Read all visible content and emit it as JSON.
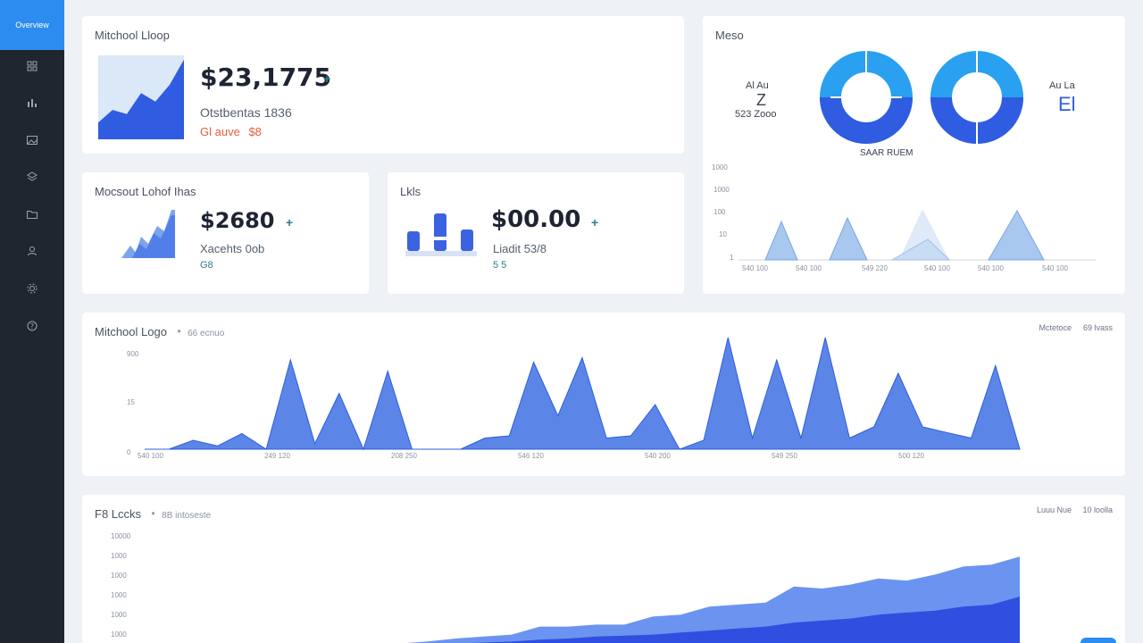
{
  "sidebar": {
    "active_label": "Overview",
    "items": [
      {
        "icon": "grid-icon"
      },
      {
        "icon": "chart-icon"
      },
      {
        "icon": "image-icon"
      },
      {
        "icon": "layers-icon"
      },
      {
        "icon": "folder-icon"
      },
      {
        "icon": "users-icon"
      },
      {
        "icon": "settings-icon"
      },
      {
        "icon": "help-icon"
      }
    ]
  },
  "card_revenue": {
    "title": "Mitchool Lloop",
    "value": "$23,1775",
    "trend": "+",
    "sub1": "Otstbentas 1836",
    "sub2_a": "Gl auve",
    "sub2_b": "$8"
  },
  "card_visits": {
    "title": "Mocsout Lohof Ihas",
    "value": "$2680",
    "trend": "+",
    "sub1": "Xacehts 0ob",
    "sub2": "G8"
  },
  "card_sales": {
    "title": "Lkls",
    "value": "$00.00",
    "trend": "+",
    "sub1": "Liadit 53/8",
    "sub2": "5 5"
  },
  "card_donut": {
    "title": "Meso",
    "left_label_1": "Al Au",
    "left_label_2": "Z",
    "left_label_3": "523 Zooo",
    "right_label_1": "Au La",
    "right_label_2": "El",
    "center_label": "SAAR RUEM"
  },
  "card_area1": {
    "title": "Mitchool Logo",
    "title_mark": "*",
    "subtitle": "66 ecnuo",
    "right_1": "Mctetoce",
    "right_2": "69 lvass"
  },
  "card_area2": {
    "title": "F8 Lccks",
    "title_mark": "*",
    "subtitle": "8B intoseste",
    "right_1": "Luuu Nue",
    "right_2": "10 loolla"
  },
  "colors": {
    "sidebar": "#1f2630",
    "accent": "#2d8cf0",
    "chart_main": "#3b63e0",
    "chart_light": "#6b94f0",
    "chart_pale": "#a8c8f0",
    "negative": "#e06040",
    "positive": "#2a7f8a"
  },
  "chart_data": [
    {
      "type": "area",
      "title": "Mitchool Lloop",
      "values": [
        20,
        35,
        30,
        55,
        45,
        65,
        95
      ]
    },
    {
      "type": "pie",
      "values": [
        25,
        25,
        25,
        25
      ],
      "series": [
        {
          "name": "",
          "values": [
            60,
            40
          ]
        },
        {
          "name": "",
          "values": [
            55,
            45
          ]
        }
      ]
    },
    {
      "type": "area",
      "title": "Mitchool Logo",
      "ylabel": "",
      "y_ticks": [
        "900",
        "15",
        "0"
      ],
      "x_ticks": [
        "540 100",
        "249 120",
        "208 250",
        "546 120",
        "540 200",
        "549 250",
        "500 120"
      ],
      "ylim": [
        0,
        100
      ],
      "values": [
        0,
        0,
        8,
        3,
        14,
        0,
        80,
        5,
        50,
        0,
        70,
        0,
        0,
        0,
        10,
        12,
        78,
        30,
        82,
        10,
        12,
        40,
        0,
        8,
        100,
        10,
        80,
        10,
        100,
        10,
        20,
        68,
        20,
        15,
        10,
        75,
        0
      ]
    },
    {
      "type": "area",
      "title": "F8 Lccks",
      "y_ticks": [
        "10000",
        "1000",
        "1000",
        "1000",
        "1000",
        "1000"
      ],
      "ylim": [
        0,
        100
      ],
      "series": [
        {
          "name": "",
          "values": [
            0,
            0,
            0,
            0,
            0,
            0,
            0,
            0,
            0,
            3,
            5,
            8,
            10,
            12,
            20,
            20,
            22,
            22,
            30,
            32,
            40,
            42,
            44,
            60,
            58,
            62,
            68,
            66,
            72,
            80,
            82,
            90
          ]
        },
        {
          "name": "",
          "values": [
            0,
            0,
            0,
            0,
            0,
            0,
            0,
            0,
            0,
            0,
            2,
            3,
            4,
            5,
            7,
            8,
            10,
            11,
            12,
            14,
            16,
            18,
            20,
            24,
            26,
            28,
            32,
            34,
            36,
            40,
            42,
            50
          ]
        }
      ]
    }
  ]
}
